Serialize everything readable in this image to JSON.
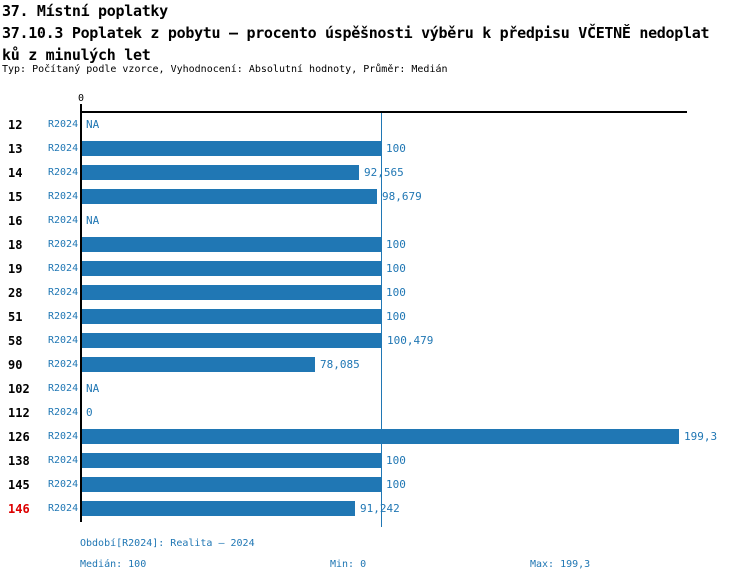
{
  "header": {
    "line1": "37. Místní poplatky",
    "line2": "37.10.3 Poplatek z pobytu – procento úspěšnosti výběru k předpisu VČETNĚ nedoplat",
    "line3": "ků z minulých let",
    "meta": "Typ: Počítaný podle vzorce, Vyhodnocení: Absolutní hodnoty, Průměr: Medián"
  },
  "colors": {
    "bar_blue": "#2077b4",
    "text_blue": "#2077b4",
    "median_line_blue": "#2077b4",
    "highlight_red": "#dd0000",
    "axis_black": "#000000"
  },
  "chart_data": {
    "type": "bar",
    "orientation": "horizontal",
    "title": "37.10.3 Poplatek z pobytu – procento úspěšnosti výběru k předpisu VČETNĚ nedoplatků z minulých let",
    "x_axis": {
      "min": 0,
      "max": 202,
      "zero_label": "0",
      "ticks_shown": [
        "0"
      ]
    },
    "median_reference_line": 100,
    "grid": false,
    "legend": false,
    "categories": [
      "12",
      "13",
      "14",
      "15",
      "16",
      "18",
      "19",
      "28",
      "51",
      "58",
      "90",
      "102",
      "112",
      "126",
      "138",
      "145",
      "146"
    ],
    "rows": [
      {
        "id": "12",
        "period": "R2024",
        "value": null,
        "display": "NA"
      },
      {
        "id": "13",
        "period": "R2024",
        "value": 100,
        "display": "100"
      },
      {
        "id": "14",
        "period": "R2024",
        "value": 92.565,
        "display": "92,565"
      },
      {
        "id": "15",
        "period": "R2024",
        "value": 98.679,
        "display": "98,679"
      },
      {
        "id": "16",
        "period": "R2024",
        "value": null,
        "display": "NA"
      },
      {
        "id": "18",
        "period": "R2024",
        "value": 100,
        "display": "100"
      },
      {
        "id": "19",
        "period": "R2024",
        "value": 100,
        "display": "100"
      },
      {
        "id": "28",
        "period": "R2024",
        "value": 100,
        "display": "100"
      },
      {
        "id": "51",
        "period": "R2024",
        "value": 100,
        "display": "100"
      },
      {
        "id": "58",
        "period": "R2024",
        "value": 100.479,
        "display": "100,479"
      },
      {
        "id": "90",
        "period": "R2024",
        "value": 78.085,
        "display": "78,085"
      },
      {
        "id": "102",
        "period": "R2024",
        "value": null,
        "display": "NA"
      },
      {
        "id": "112",
        "period": "R2024",
        "value": 0,
        "display": "0"
      },
      {
        "id": "126",
        "period": "R2024",
        "value": 199.3,
        "display": "199,3"
      },
      {
        "id": "138",
        "period": "R2024",
        "value": 100,
        "display": "100"
      },
      {
        "id": "145",
        "period": "R2024",
        "value": 100,
        "display": "100"
      },
      {
        "id": "146",
        "period": "R2024",
        "value": 91.242,
        "display": "91,242",
        "highlight": true
      }
    ]
  },
  "footer": {
    "period_line": "Období[R2024]: Realita – 2024",
    "median": "Medián: 100",
    "min": "Min: 0",
    "max": "Max: 199,3"
  }
}
